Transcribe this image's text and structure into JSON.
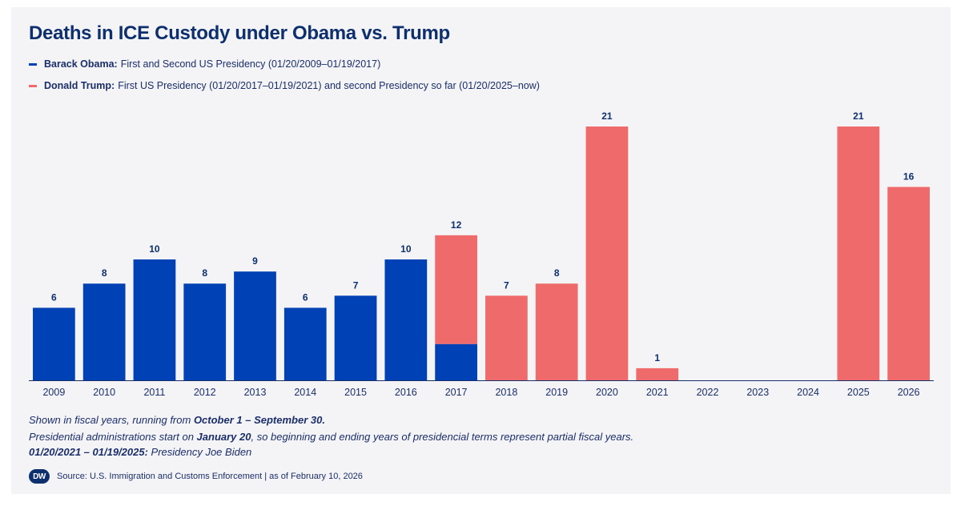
{
  "title": "Deaths in ICE Custody under Obama vs. Trump",
  "legend": [
    {
      "name": "Barack Obama:",
      "desc": "First and Second US Presidency (01/20/2009–01/19/2017)",
      "color": "#0041b5"
    },
    {
      "name": "Donald Trump:",
      "desc": "First US Presidency (01/20/2017–01/19/2021) and second Presidency so far (01/20/2025–now)",
      "color": "#ef6b6b"
    }
  ],
  "chart_data": {
    "type": "bar",
    "stacked": true,
    "categories": [
      "2009",
      "2010",
      "2011",
      "2012",
      "2013",
      "2014",
      "2015",
      "2016",
      "2017",
      "2018",
      "2019",
      "2020",
      "2021",
      "2022",
      "2023",
      "2024",
      "2025",
      "2026"
    ],
    "series": [
      {
        "name": "Barack Obama",
        "color": "#0041b5",
        "values": [
          6,
          8,
          10,
          8,
          9,
          6,
          7,
          10,
          3,
          0,
          0,
          0,
          0,
          0,
          0,
          0,
          0,
          0
        ]
      },
      {
        "name": "Donald Trump",
        "color": "#ef6b6b",
        "values": [
          0,
          0,
          0,
          0,
          0,
          0,
          0,
          0,
          9,
          7,
          8,
          21,
          1,
          0,
          0,
          0,
          21,
          16
        ]
      }
    ],
    "labels": [
      "6",
      "8",
      "10",
      "8",
      "9",
      "6",
      "7",
      "10",
      "12",
      "7",
      "8",
      "21",
      "1",
      "",
      "",
      "",
      "21",
      "16"
    ],
    "ylim": [
      0,
      21
    ],
    "grid": false,
    "xlabel": "",
    "ylabel": ""
  },
  "footnotes": {
    "line1_prefix": "Shown in fiscal years, running from ",
    "line1_bold": "October 1 – September 30.",
    "line2_prefix": "Presidential administrations start on ",
    "line2_bold": "January 20",
    "line2_suffix": ", so beginning and ending years of presidencial terms represent partial fiscal years.",
    "line3_bold": "01/20/2021 – 01/19/2025:",
    "line3_suffix": " Presidency Joe Biden"
  },
  "source": {
    "logo_text": "DW",
    "text": "Source: U.S. Immigration and Customs Enforcement | as of February 10, 2026"
  },
  "colors": {
    "axis": "#1a2f6a",
    "label": "#0d2f6e"
  }
}
